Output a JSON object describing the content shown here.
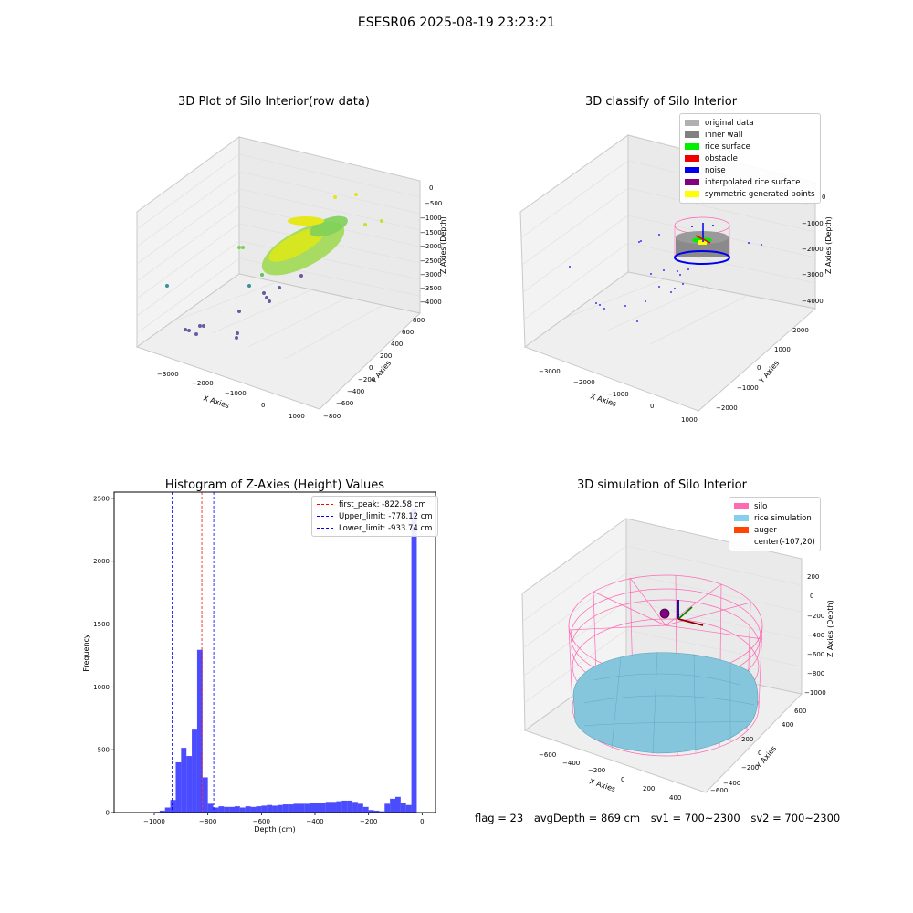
{
  "suptitle": "ESESR06 2025-08-19 23:23:21",
  "panel1": {
    "title": "3D Plot of Silo Interior(row data)",
    "xlabel": "X Axies",
    "ylabel": "Y Axies",
    "zlabel": "Z Axies (Depth)",
    "xticks": [
      "−3000",
      "−2000",
      "−1000",
      "0",
      "1000"
    ],
    "yticks": [
      "−800",
      "−600",
      "−400",
      "−200",
      "0",
      "200",
      "400",
      "600",
      "800"
    ],
    "zticks": [
      "0",
      "−500",
      "−1000",
      "−1500",
      "−2000",
      "−2500",
      "−3000",
      "−3500",
      "−4000"
    ]
  },
  "panel2": {
    "title": "3D classify of Silo Interior",
    "xlabel": "X Axies",
    "ylabel": "Y Axies",
    "zlabel": "Z Axies (Depth)",
    "xticks": [
      "−3000",
      "−2000",
      "−1000",
      "0",
      "1000"
    ],
    "yticks": [
      "−2000",
      "−1000",
      "0",
      "1000",
      "2000"
    ],
    "zticks": [
      "0",
      "−1000",
      "−2000",
      "−3000",
      "−4000"
    ],
    "legend": [
      {
        "label": "original data",
        "color": "#b0b0b0"
      },
      {
        "label": "inner wall",
        "color": "#808080"
      },
      {
        "label": "rice surface",
        "color": "#00ee00"
      },
      {
        "label": "obstacle",
        "color": "#ee0000"
      },
      {
        "label": "noise",
        "color": "#0000ee"
      },
      {
        "label": "interpolated rice surface",
        "color": "#800080"
      },
      {
        "label": "symmetric generated points",
        "color": "#ffff00"
      }
    ]
  },
  "panel4": {
    "title": "3D simulation of Silo Interior",
    "xlabel": "X Axies",
    "ylabel": "Y Axies",
    "zlabel": "Z Axies (Depth)",
    "xticks": [
      "−600",
      "−400",
      "−200",
      "0",
      "200",
      "400"
    ],
    "yticks": [
      "−600",
      "−400",
      "−200",
      "0",
      "200",
      "400",
      "600"
    ],
    "zticks": [
      "200",
      "0",
      "−200",
      "−400",
      "−600",
      "−800",
      "−1000"
    ],
    "legend": [
      {
        "label": "silo",
        "color": "#ff69b4"
      },
      {
        "label": "rice simulation",
        "color": "#87ceeb"
      },
      {
        "label": "auger",
        "color": "#ff4500"
      },
      {
        "label": "center(-107,20)",
        "color": ""
      }
    ]
  },
  "footer": {
    "flag": "flag = 23",
    "avg": "avgDepth = 869 cm",
    "sv1": "sv1 = 700~2300",
    "sv2": "sv2 = 700~2300"
  },
  "chart_data": [
    {
      "type": "bar",
      "title": "Histogram of Z-Axies (Height) Values",
      "xlabel": "Depth (cm)",
      "ylabel": "Frequency",
      "xlim": [
        -1150,
        50
      ],
      "ylim": [
        0,
        2550
      ],
      "xticks": [
        -1000,
        -800,
        -600,
        -400,
        -200,
        0
      ],
      "yticks": [
        0,
        500,
        1000,
        1500,
        2000,
        2500
      ],
      "bar_color": "#0000ff",
      "bin_width": 20,
      "bins": [
        {
          "x": -1020,
          "v": 2
        },
        {
          "x": -1000,
          "v": 5
        },
        {
          "x": -980,
          "v": 15
        },
        {
          "x": -960,
          "v": 40
        },
        {
          "x": -940,
          "v": 100
        },
        {
          "x": -920,
          "v": 400
        },
        {
          "x": -900,
          "v": 515
        },
        {
          "x": -880,
          "v": 450
        },
        {
          "x": -860,
          "v": 660
        },
        {
          "x": -840,
          "v": 1295
        },
        {
          "x": -820,
          "v": 280
        },
        {
          "x": -800,
          "v": 70
        },
        {
          "x": -780,
          "v": 40
        },
        {
          "x": -760,
          "v": 50
        },
        {
          "x": -740,
          "v": 45
        },
        {
          "x": -720,
          "v": 45
        },
        {
          "x": -700,
          "v": 50
        },
        {
          "x": -680,
          "v": 40
        },
        {
          "x": -660,
          "v": 50
        },
        {
          "x": -640,
          "v": 45
        },
        {
          "x": -620,
          "v": 50
        },
        {
          "x": -600,
          "v": 55
        },
        {
          "x": -580,
          "v": 60
        },
        {
          "x": -560,
          "v": 55
        },
        {
          "x": -540,
          "v": 60
        },
        {
          "x": -520,
          "v": 65
        },
        {
          "x": -500,
          "v": 65
        },
        {
          "x": -480,
          "v": 70
        },
        {
          "x": -460,
          "v": 70
        },
        {
          "x": -440,
          "v": 70
        },
        {
          "x": -420,
          "v": 80
        },
        {
          "x": -400,
          "v": 75
        },
        {
          "x": -380,
          "v": 80
        },
        {
          "x": -360,
          "v": 85
        },
        {
          "x": -340,
          "v": 85
        },
        {
          "x": -320,
          "v": 90
        },
        {
          "x": -300,
          "v": 95
        },
        {
          "x": -280,
          "v": 95
        },
        {
          "x": -260,
          "v": 85
        },
        {
          "x": -240,
          "v": 70
        },
        {
          "x": -220,
          "v": 45
        },
        {
          "x": -200,
          "v": 20
        },
        {
          "x": -180,
          "v": 15
        },
        {
          "x": -160,
          "v": 10
        },
        {
          "x": -140,
          "v": 70
        },
        {
          "x": -120,
          "v": 110
        },
        {
          "x": -100,
          "v": 125
        },
        {
          "x": -80,
          "v": 80
        },
        {
          "x": -60,
          "v": 60
        },
        {
          "x": -40,
          "v": 2410
        }
      ],
      "vlines": [
        {
          "label": "first_peak: -822.58 cm",
          "x": -822.58,
          "color": "#ff0000"
        },
        {
          "label": "Upper_limit: -778.12 cm",
          "x": -778.12,
          "color": "#0000ff"
        },
        {
          "label": "Lower_limit: -933.74 cm",
          "x": -933.74,
          "color": "#0000ff"
        }
      ],
      "legend_position": "top-right"
    }
  ]
}
